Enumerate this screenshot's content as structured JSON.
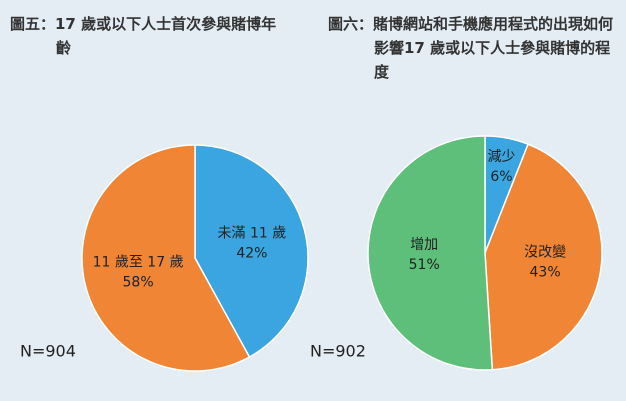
{
  "chart_data": [
    {
      "type": "pie",
      "title": "圖五：17 歲或以下人士首次參與賭博年齡",
      "categories": [
        "未滿 11 歲",
        "11 歲至 17 歲"
      ],
      "values": [
        42,
        58
      ],
      "value_labels": [
        "42%",
        "58%"
      ],
      "colors": [
        "#3aa5e0",
        "#f08536"
      ],
      "note": "N=904"
    },
    {
      "type": "pie",
      "title": "圖六：賭博網站和手機應用程式的出現如何影響17 歲或以下人士參與賭博的程度",
      "categories": [
        "減少",
        "沒改變",
        "增加"
      ],
      "values": [
        6,
        43,
        51
      ],
      "value_labels": [
        "6%",
        "43%",
        "51%"
      ],
      "colors": [
        "#3aa5e0",
        "#f08536",
        "#5dbf7a"
      ],
      "note": "N=902"
    }
  ]
}
